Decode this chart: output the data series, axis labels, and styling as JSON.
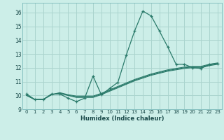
{
  "xlabel": "Humidex (Indice chaleur)",
  "bg_color": "#cceee8",
  "grid_color": "#aad4ce",
  "line_color": "#2a7a6a",
  "xlim": [
    -0.5,
    23.5
  ],
  "ylim": [
    9.0,
    16.7
  ],
  "yticks": [
    9,
    10,
    11,
    12,
    13,
    14,
    15,
    16
  ],
  "xticks": [
    0,
    1,
    2,
    3,
    4,
    5,
    6,
    7,
    8,
    9,
    10,
    11,
    12,
    13,
    14,
    15,
    16,
    17,
    18,
    19,
    20,
    21,
    22,
    23
  ],
  "curve1_x": [
    0,
    1,
    2,
    3,
    4,
    5,
    6,
    7,
    8,
    9,
    10,
    11,
    12,
    13,
    14,
    15,
    16,
    17,
    18,
    19,
    20,
    21,
    22,
    23
  ],
  "curve1_y": [
    10.1,
    9.7,
    9.7,
    10.1,
    10.1,
    9.8,
    9.55,
    9.8,
    11.4,
    10.05,
    10.5,
    10.95,
    12.9,
    14.65,
    16.1,
    15.75,
    14.65,
    13.5,
    12.25,
    12.25,
    12.0,
    11.95,
    12.25,
    12.3
  ],
  "curve2_x": [
    0,
    1,
    2,
    3,
    4,
    5,
    6,
    7,
    8,
    9,
    10,
    11,
    12,
    13,
    14,
    15,
    16,
    17,
    18,
    19,
    20,
    21,
    22,
    23
  ],
  "curve2_y": [
    10.0,
    9.7,
    9.7,
    10.05,
    10.15,
    10.0,
    9.85,
    9.85,
    9.85,
    10.05,
    10.3,
    10.55,
    10.8,
    11.05,
    11.25,
    11.45,
    11.6,
    11.75,
    11.85,
    11.95,
    12.0,
    12.0,
    12.15,
    12.25
  ],
  "curve3_x": [
    0,
    1,
    2,
    3,
    4,
    5,
    6,
    7,
    8,
    9,
    10,
    11,
    12,
    13,
    14,
    15,
    16,
    17,
    18,
    19,
    20,
    21,
    22,
    23
  ],
  "curve3_y": [
    10.0,
    9.7,
    9.7,
    10.05,
    10.15,
    10.0,
    9.9,
    9.9,
    9.9,
    10.1,
    10.35,
    10.6,
    10.85,
    11.1,
    11.3,
    11.5,
    11.65,
    11.8,
    11.9,
    12.0,
    12.05,
    12.05,
    12.2,
    12.3
  ],
  "curve4_x": [
    0,
    1,
    2,
    3,
    4,
    5,
    6,
    7,
    8,
    9,
    10,
    11,
    12,
    13,
    14,
    15,
    16,
    17,
    18,
    19,
    20,
    21,
    22,
    23
  ],
  "curve4_y": [
    10.0,
    9.7,
    9.7,
    10.05,
    10.2,
    10.05,
    9.95,
    9.95,
    9.95,
    10.15,
    10.4,
    10.65,
    10.9,
    11.15,
    11.35,
    11.55,
    11.7,
    11.85,
    11.95,
    12.05,
    12.1,
    12.1,
    12.25,
    12.35
  ]
}
